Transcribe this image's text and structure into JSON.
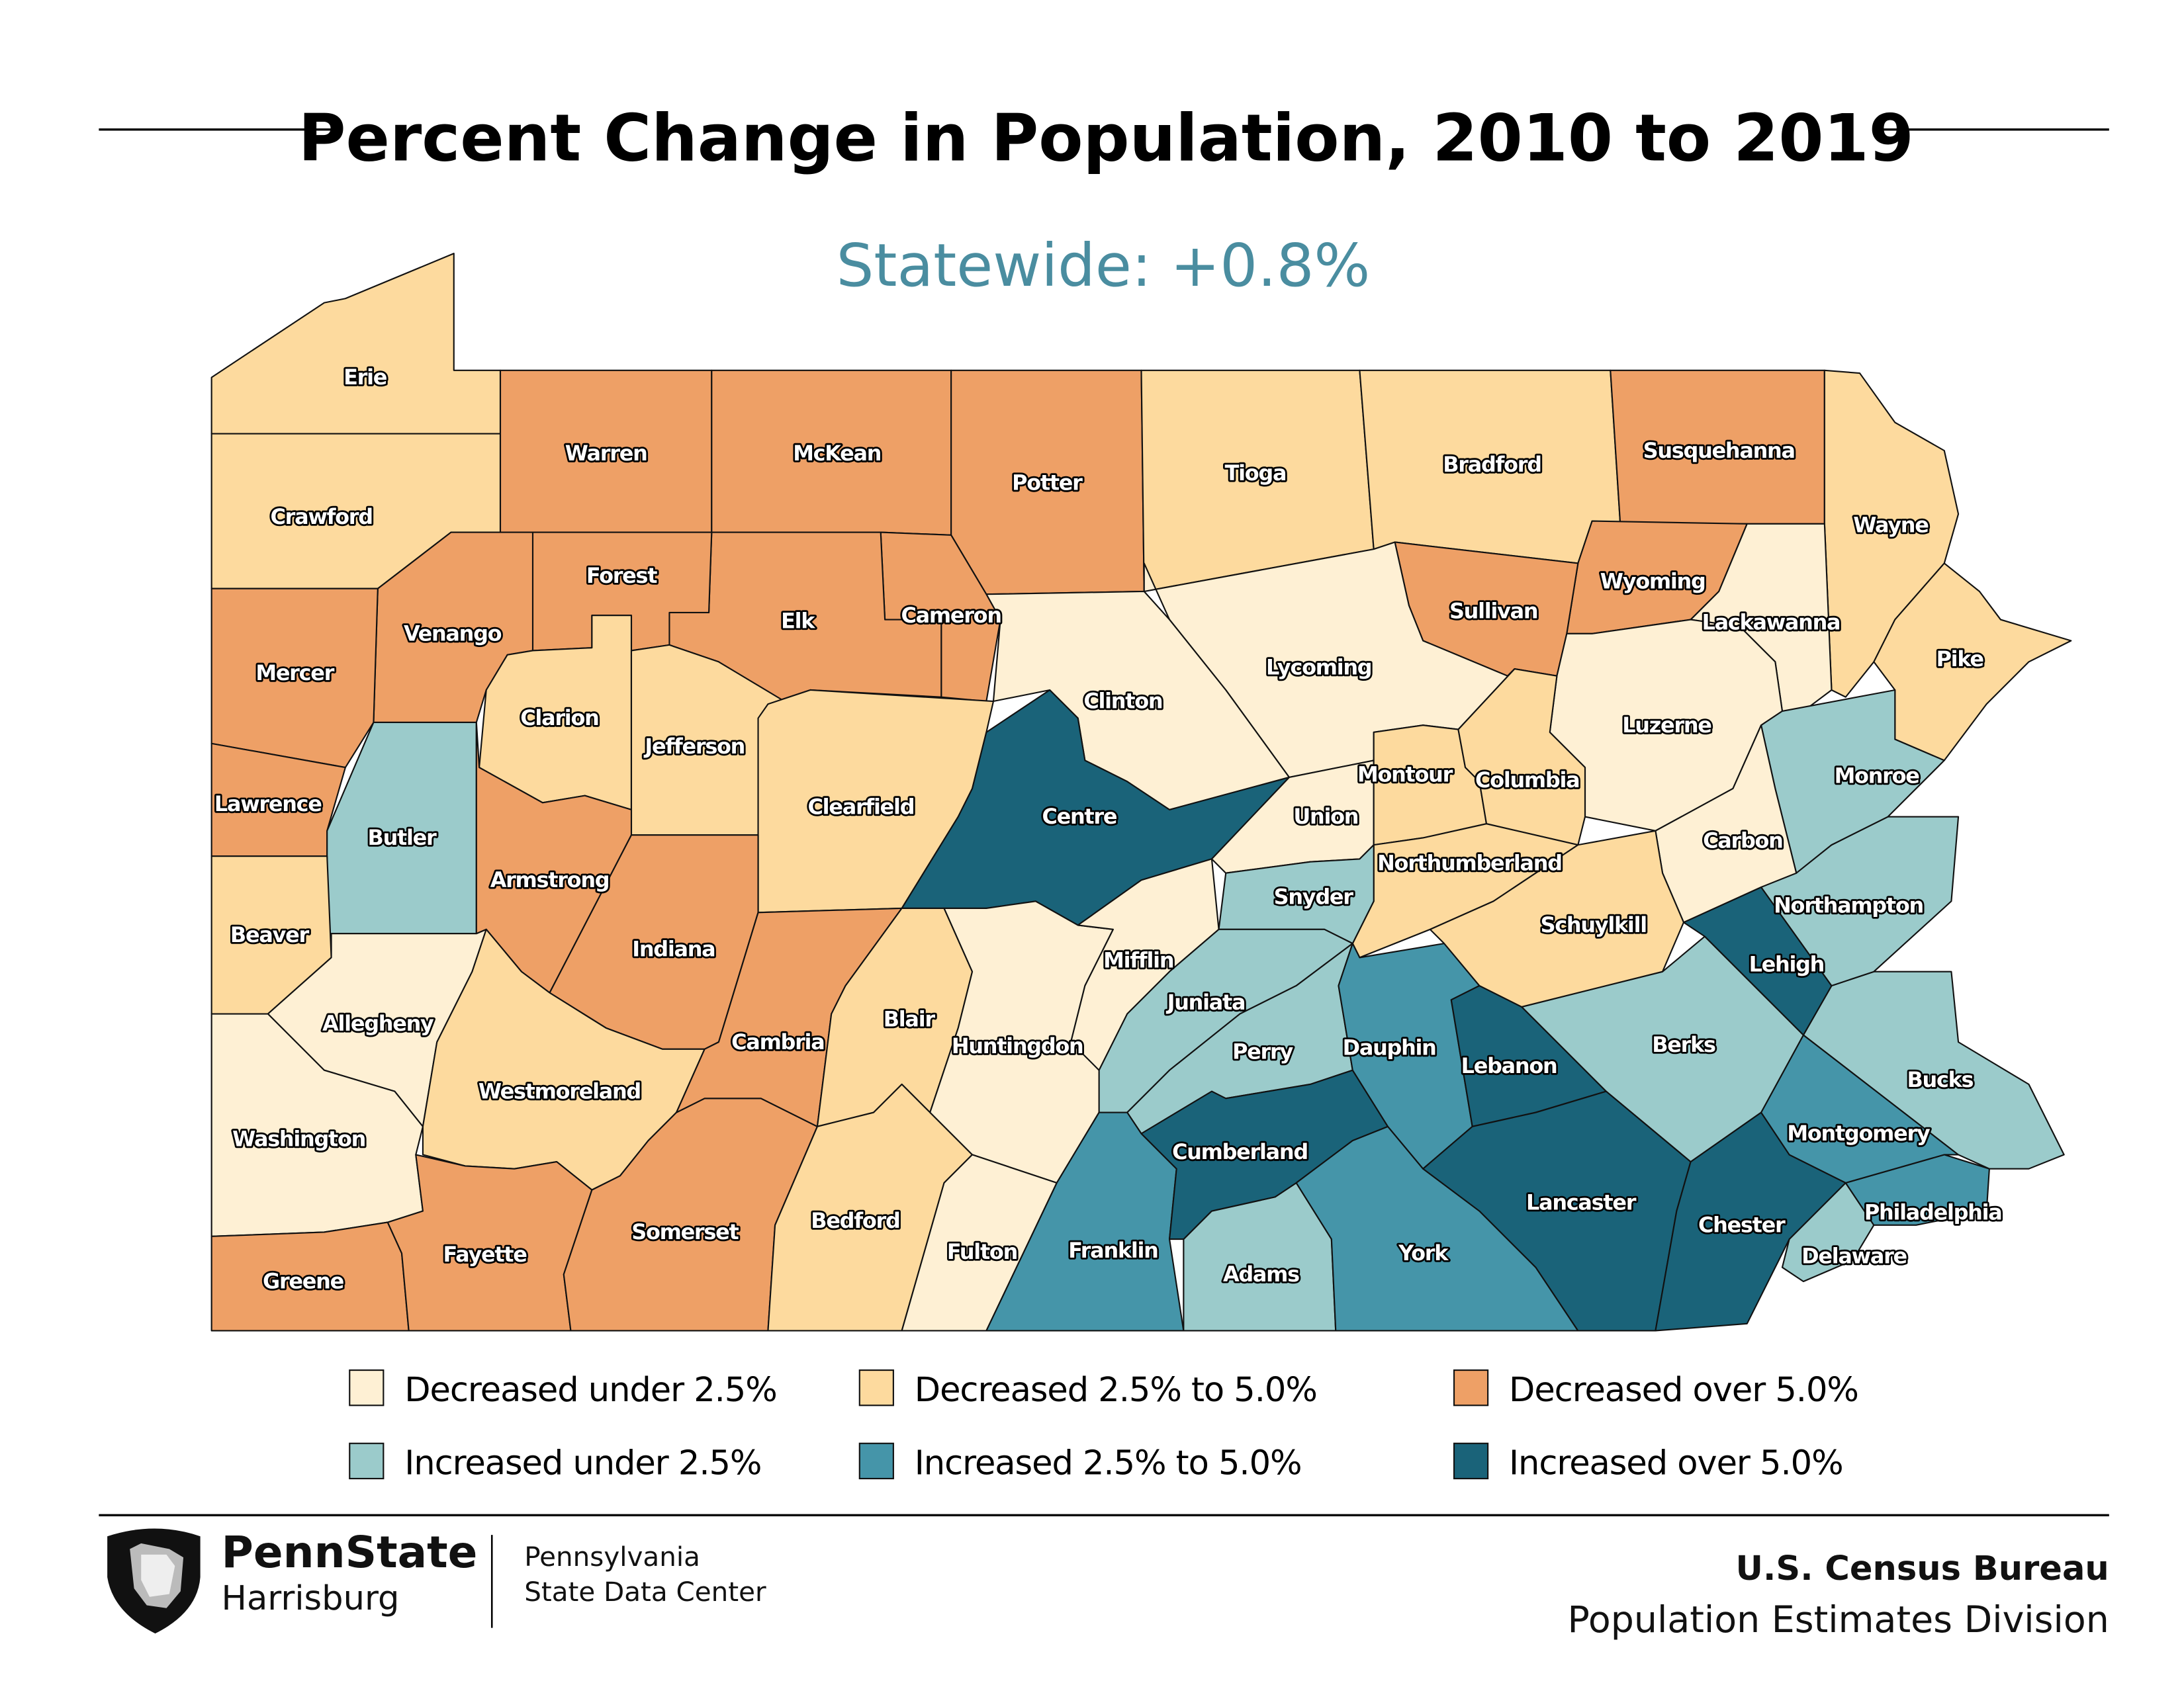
{
  "title": "Percent Change in Population, 2010 to 2019",
  "subtitle": "Statewide: +0.8%",
  "subtitle_color": "#4A8DA0",
  "legend": [
    {
      "key": "A",
      "label": "Decreased under 2.5%",
      "color": "#FEF0D4"
    },
    {
      "key": "B",
      "label": "Decreased 2.5% to 5.0%",
      "color": "#FDDA9E"
    },
    {
      "key": "C",
      "label": "Decreased over 5.0%",
      "color": "#EEA066"
    },
    {
      "key": "D",
      "label": "Increased under 2.5%",
      "color": "#9BCBCB"
    },
    {
      "key": "E",
      "label": "Increased 2.5% to 5.0%",
      "color": "#4595A9"
    },
    {
      "key": "F",
      "label": "Increased over 5.0%",
      "color": "#1A6379"
    }
  ],
  "counties": [
    {
      "name": "Erie",
      "category": "Decreased 2.5% to 5.0%"
    },
    {
      "name": "Crawford",
      "category": "Decreased 2.5% to 5.0%"
    },
    {
      "name": "Warren",
      "category": "Decreased over 5.0%"
    },
    {
      "name": "McKean",
      "category": "Decreased over 5.0%"
    },
    {
      "name": "Potter",
      "category": "Decreased over 5.0%"
    },
    {
      "name": "Tioga",
      "category": "Decreased 2.5% to 5.0%"
    },
    {
      "name": "Bradford",
      "category": "Decreased 2.5% to 5.0%"
    },
    {
      "name": "Susquehanna",
      "category": "Decreased over 5.0%"
    },
    {
      "name": "Wayne",
      "category": "Decreased 2.5% to 5.0%"
    },
    {
      "name": "Pike",
      "category": "Decreased 2.5% to 5.0%"
    },
    {
      "name": "Wyoming",
      "category": "Decreased over 5.0%"
    },
    {
      "name": "Sullivan",
      "category": "Decreased over 5.0%"
    },
    {
      "name": "Lackawanna",
      "category": "Decreased under 2.5%"
    },
    {
      "name": "Luzerne",
      "category": "Decreased under 2.5%"
    },
    {
      "name": "Lycoming",
      "category": "Decreased under 2.5%"
    },
    {
      "name": "Clinton",
      "category": "Decreased under 2.5%"
    },
    {
      "name": "Cameron",
      "category": "Decreased over 5.0%"
    },
    {
      "name": "Elk",
      "category": "Decreased over 5.0%"
    },
    {
      "name": "Forest",
      "category": "Decreased over 5.0%"
    },
    {
      "name": "Venango",
      "category": "Decreased over 5.0%"
    },
    {
      "name": "Mercer",
      "category": "Decreased over 5.0%"
    },
    {
      "name": "Lawrence",
      "category": "Decreased over 5.0%"
    },
    {
      "name": "Clarion",
      "category": "Decreased 2.5% to 5.0%"
    },
    {
      "name": "Jefferson",
      "category": "Decreased 2.5% to 5.0%"
    },
    {
      "name": "Clearfield",
      "category": "Decreased 2.5% to 5.0%"
    },
    {
      "name": "Centre",
      "category": "Increased over 5.0%"
    },
    {
      "name": "Butler",
      "category": "Increased under 2.5%"
    },
    {
      "name": "Beaver",
      "category": "Decreased 2.5% to 5.0%"
    },
    {
      "name": "Armstrong",
      "category": "Decreased over 5.0%"
    },
    {
      "name": "Indiana",
      "category": "Decreased over 5.0%"
    },
    {
      "name": "Allegheny",
      "category": "Decreased under 2.5%"
    },
    {
      "name": "Washington",
      "category": "Decreased under 2.5%"
    },
    {
      "name": "Westmoreland",
      "category": "Decreased 2.5% to 5.0%"
    },
    {
      "name": "Greene",
      "category": "Decreased over 5.0%"
    },
    {
      "name": "Fayette",
      "category": "Decreased over 5.0%"
    },
    {
      "name": "Somerset",
      "category": "Decreased over 5.0%"
    },
    {
      "name": "Cambria",
      "category": "Decreased over 5.0%"
    },
    {
      "name": "Blair",
      "category": "Decreased 2.5% to 5.0%"
    },
    {
      "name": "Bedford",
      "category": "Decreased 2.5% to 5.0%"
    },
    {
      "name": "Huntingdon",
      "category": "Decreased under 2.5%"
    },
    {
      "name": "Fulton",
      "category": "Decreased under 2.5%"
    },
    {
      "name": "Mifflin",
      "category": "Decreased under 2.5%"
    },
    {
      "name": "Union",
      "category": "Decreased under 2.5%"
    },
    {
      "name": "Montour",
      "category": "Decreased 2.5% to 5.0%"
    },
    {
      "name": "Columbia",
      "category": "Decreased 2.5% to 5.0%"
    },
    {
      "name": "Northumberland",
      "category": "Decreased 2.5% to 5.0%"
    },
    {
      "name": "Snyder",
      "category": "Increased under 2.5%"
    },
    {
      "name": "Juniata",
      "category": "Increased under 2.5%"
    },
    {
      "name": "Perry",
      "category": "Increased under 2.5%"
    },
    {
      "name": "Franklin",
      "category": "Increased 2.5% to 5.0%"
    },
    {
      "name": "Adams",
      "category": "Increased under 2.5%"
    },
    {
      "name": "Cumberland",
      "category": "Increased over 5.0%"
    },
    {
      "name": "York",
      "category": "Increased 2.5% to 5.0%"
    },
    {
      "name": "Dauphin",
      "category": "Increased 2.5% to 5.0%"
    },
    {
      "name": "Lebanon",
      "category": "Increased over 5.0%"
    },
    {
      "name": "Lancaster",
      "category": "Increased over 5.0%"
    },
    {
      "name": "Chester",
      "category": "Increased over 5.0%"
    },
    {
      "name": "Delaware",
      "category": "Increased under 2.5%"
    },
    {
      "name": "Philadelphia",
      "category": "Increased 2.5% to 5.0%"
    },
    {
      "name": "Montgomery",
      "category": "Increased 2.5% to 5.0%"
    },
    {
      "name": "Bucks",
      "category": "Increased under 2.5%"
    },
    {
      "name": "Berks",
      "category": "Increased under 2.5%"
    },
    {
      "name": "Lehigh",
      "category": "Increased over 5.0%"
    },
    {
      "name": "Northampton",
      "category": "Increased under 2.5%"
    },
    {
      "name": "Monroe",
      "category": "Increased under 2.5%"
    },
    {
      "name": "Carbon",
      "category": "Decreased under 2.5%"
    },
    {
      "name": "Schuylkill",
      "category": "Decreased 2.5% to 5.0%"
    }
  ],
  "footer": {
    "logo_name": "PennState",
    "logo_campus": "Harrisburg",
    "center_line1": "Pennsylvania",
    "center_line2": "State Data Center",
    "source_line1": "U.S. Census Bureau",
    "source_line2": "Population Estimates Division"
  }
}
